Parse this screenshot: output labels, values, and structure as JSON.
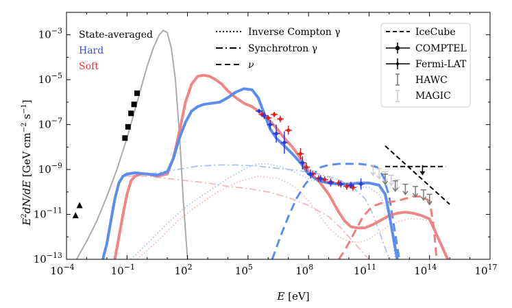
{
  "chart_data": {
    "type": "line",
    "xlabel": "E [eV]",
    "ylabel": "E²dN/dE [GeV cm⁻² s⁻¹]",
    "xlim_log10": [
      -4,
      17
    ],
    "ylim_log10": [
      -13,
      -2
    ],
    "x_ticks": [
      {
        "mant": "10",
        "exp": "−4",
        "v": -4
      },
      {
        "mant": "10",
        "exp": "−1",
        "v": -1
      },
      {
        "mant": "10",
        "exp": "2",
        "v": 2
      },
      {
        "mant": "10",
        "exp": "5",
        "v": 5
      },
      {
        "mant": "10",
        "exp": "8",
        "v": 8
      },
      {
        "mant": "10",
        "exp": "11",
        "v": 11
      },
      {
        "mant": "10",
        "exp": "14",
        "v": 14
      },
      {
        "mant": "10",
        "exp": "17",
        "v": 17
      }
    ],
    "y_ticks": [
      {
        "mant": "10",
        "exp": "−3",
        "v": -3
      },
      {
        "mant": "10",
        "exp": "−5",
        "v": -5
      },
      {
        "mant": "10",
        "exp": "−7",
        "v": -7
      },
      {
        "mant": "10",
        "exp": "−9",
        "v": -9
      },
      {
        "mant": "10",
        "exp": "−11",
        "v": -11
      },
      {
        "mant": "10",
        "exp": "−13",
        "v": -13
      }
    ],
    "state_legend": [
      {
        "label": "State-averaged",
        "color": "#222222"
      },
      {
        "label": "Hard",
        "color": "#3b4fe0"
      },
      {
        "label": "Soft",
        "color": "#e8323c"
      }
    ],
    "component_legend": [
      {
        "label": "Inverse Compton γ",
        "dash": "2,3"
      },
      {
        "label": "Synchrotron γ",
        "dash": "10,4,2,4"
      },
      {
        "label": "ν",
        "dash": "8,5"
      }
    ],
    "data_legend": [
      {
        "label": "IceCube",
        "kind": "dashed-line",
        "color": "#000000"
      },
      {
        "label": "COMPTEL",
        "kind": "errorbar",
        "color": "#000000"
      },
      {
        "label": "Fermi-LAT",
        "kind": "errorbar",
        "color": "#000000"
      },
      {
        "label": "HAWC",
        "kind": "upper",
        "color": "#777777"
      },
      {
        "label": "MAGIC",
        "kind": "upper",
        "color": "#cccccc"
      }
    ],
    "colors": {
      "gray": "#aaaaaa",
      "hard": "#5b8def",
      "soft": "#ee7f7f",
      "hard_light": "#a9c4ef",
      "soft_light": "#f3b9b9",
      "hard_points": "#2a3bd6",
      "soft_points": "#e01e1e"
    },
    "series": [
      {
        "name": "gray-thermal",
        "style": "solid",
        "color": "gray",
        "width": 2,
        "x": [
          -3.5,
          -3,
          -2.5,
          -2,
          -1.5,
          -1,
          -0.5,
          0,
          0.3,
          0.6,
          0.8,
          1,
          1.2,
          1.4,
          1.6,
          1.8,
          2
        ],
        "y": [
          -13,
          -12.2,
          -11.3,
          -10.2,
          -9,
          -7.6,
          -6,
          -4.4,
          -3.6,
          -3,
          -2.8,
          -2.9,
          -3.6,
          -5,
          -7.4,
          -10.5,
          -13
        ]
      },
      {
        "name": "hard-total",
        "style": "solid",
        "color": "hard",
        "width": 4,
        "x": [
          -2.2,
          -2,
          -1.8,
          -1.6,
          -1.4,
          -1.2,
          -1,
          -0.6,
          0,
          0.5,
          1,
          1.3,
          1.6,
          1.9,
          2.2,
          2.5,
          2.8,
          3.2,
          3.6,
          4,
          4.4,
          4.8,
          5.2,
          5.5,
          5.8,
          6.1,
          6.4,
          6.8,
          7.2,
          7.6,
          8,
          8.5,
          9,
          9.5,
          10,
          10.5,
          11,
          11.5,
          11.8,
          12,
          12.2,
          12.4
        ],
        "y": [
          -13,
          -12.3,
          -11.3,
          -10.3,
          -9.6,
          -9.3,
          -9.2,
          -9.15,
          -9.2,
          -9.25,
          -9.1,
          -8.5,
          -7.6,
          -6.9,
          -6.4,
          -6.2,
          -6.1,
          -6.05,
          -6.0,
          -5.8,
          -5.55,
          -5.4,
          -5.45,
          -5.8,
          -6.5,
          -7.2,
          -7.6,
          -7.95,
          -8.3,
          -8.7,
          -9.2,
          -9.5,
          -9.6,
          -9.65,
          -9.65,
          -9.6,
          -9.6,
          -9.7,
          -10.1,
          -11,
          -12,
          -13
        ]
      },
      {
        "name": "soft-total",
        "style": "solid",
        "color": "soft",
        "width": 4,
        "x": [
          -1.6,
          -1.4,
          -1.2,
          -1,
          -0.8,
          -0.6,
          -0.3,
          0,
          0.5,
          1,
          1.3,
          1.6,
          1.9,
          2.2,
          2.5,
          2.8,
          3.1,
          3.4,
          3.7,
          4,
          4.4,
          4.8,
          5.2,
          5.6,
          6,
          6.4,
          6.8,
          7.2,
          7.6,
          8,
          8.5,
          9,
          9.5,
          9.8,
          10.1,
          10.4,
          10.8,
          11.2,
          11.6,
          12,
          12.4,
          12.8,
          13.2,
          13.6,
          14,
          14.3,
          14.6,
          14.9
        ],
        "y": [
          -13,
          -12,
          -11,
          -10.1,
          -9.5,
          -9.3,
          -9.2,
          -9.2,
          -9.3,
          -9.2,
          -8.5,
          -7.3,
          -6.0,
          -5.2,
          -4.85,
          -4.8,
          -4.85,
          -5.0,
          -5.2,
          -5.5,
          -5.8,
          -6.05,
          -6.2,
          -6.45,
          -6.75,
          -7.15,
          -7.6,
          -8.0,
          -8.5,
          -9.1,
          -9.5,
          -10.1,
          -10.9,
          -11.3,
          -11.55,
          -11.6,
          -11.6,
          -11.45,
          -11.25,
          -11.05,
          -10.95,
          -10.9,
          -10.95,
          -11.05,
          -11.2,
          -11.8,
          -12.4,
          -13
        ]
      },
      {
        "name": "hard-nu",
        "style": "dashed",
        "color": "hard",
        "width": 3,
        "x": [
          6.2,
          6.6,
          7,
          7.4,
          7.8,
          8.2,
          8.6,
          9,
          9.5,
          10,
          10.5,
          11,
          11.4,
          11.7,
          12,
          12.2,
          12.5
        ],
        "y": [
          -13,
          -12,
          -11.1,
          -10.3,
          -9.7,
          -9.25,
          -8.9,
          -8.8,
          -8.75,
          -8.75,
          -8.75,
          -8.8,
          -8.9,
          -9.3,
          -10.2,
          -11.3,
          -13
        ]
      },
      {
        "name": "soft-nu",
        "style": "dashed",
        "color": "soft",
        "width": 3,
        "x": [
          9.5,
          9.8,
          10.1,
          10.4,
          10.7,
          11,
          11.3,
          11.6,
          12,
          12.4,
          12.8,
          13.2,
          13.6,
          14,
          14.2,
          14.35
        ],
        "y": [
          -13,
          -12.6,
          -12.1,
          -11.6,
          -11.1,
          -10.8,
          -10.6,
          -10.5,
          -10.45,
          -10.4,
          -10.3,
          -10.2,
          -10.2,
          -10.4,
          -11.5,
          -13
        ]
      },
      {
        "name": "hard-sync",
        "style": "dashdot",
        "color": "hard_light",
        "width": 1.8,
        "x": [
          -1.2,
          -0.5,
          0.5,
          1.5,
          2.5,
          3.5,
          4.5,
          5.5,
          6.5,
          7.5,
          8.5,
          9.5,
          10.2,
          10.8,
          11.2,
          11.6,
          12
        ],
        "y": [
          -9.3,
          -9.25,
          -9.15,
          -9.0,
          -8.85,
          -8.8,
          -8.8,
          -8.85,
          -8.95,
          -9.05,
          -9.2,
          -9.45,
          -9.8,
          -10.3,
          -11,
          -12,
          -13
        ]
      },
      {
        "name": "soft-sync",
        "style": "dashdot",
        "color": "soft_light",
        "width": 1.8,
        "x": [
          -1.0,
          0,
          1,
          2,
          3,
          4,
          5,
          6,
          7,
          8,
          9,
          9.6,
          10.2,
          10.6,
          11
        ],
        "y": [
          -9.3,
          -9.3,
          -9.4,
          -9.5,
          -9.6,
          -9.75,
          -9.85,
          -10.0,
          -10.25,
          -10.6,
          -11.1,
          -11.6,
          -12.2,
          -12.6,
          -13
        ]
      },
      {
        "name": "hard-ic",
        "style": "dotted",
        "color": "hard_light",
        "width": 1.8,
        "x": [
          -0.8,
          0,
          1,
          2,
          3,
          4,
          5,
          5.5,
          6,
          6.5,
          7,
          7.5,
          8,
          8.5,
          9,
          10,
          11,
          11.5,
          12,
          12.3
        ],
        "y": [
          -13,
          -12.3,
          -11.4,
          -10.6,
          -10.0,
          -9.4,
          -8.9,
          -8.75,
          -8.75,
          -8.85,
          -9.0,
          -9.2,
          -9.4,
          -9.55,
          -9.65,
          -9.75,
          -9.8,
          -10.1,
          -11,
          -13
        ]
      },
      {
        "name": "soft-ic",
        "style": "dotted",
        "color": "soft_light",
        "width": 1.8,
        "x": [
          -0.5,
          0.5,
          1.5,
          2.5,
          3.5,
          4.5,
          5.5,
          6.5,
          7,
          7.5,
          8,
          8.5,
          9,
          9.5,
          10,
          10.5,
          11,
          11.5,
          12,
          12.5,
          13,
          13.5,
          14,
          14.2
        ],
        "y": [
          -13,
          -12.2,
          -11.3,
          -10.6,
          -10.0,
          -9.55,
          -9.3,
          -9.4,
          -9.6,
          -9.9,
          -10.4,
          -11.0,
          -11.6,
          -12.0,
          -12.2,
          -12.25,
          -12.1,
          -11.8,
          -11.5,
          -11.3,
          -11.2,
          -11.2,
          -11.3,
          -11.6
        ]
      },
      {
        "name": "icecube-flat",
        "style": "icecube",
        "color": "black",
        "width": 2,
        "x": [
          11.8,
          14.8
        ],
        "y": [
          -8.87,
          -8.87
        ]
      },
      {
        "name": "icecube-slope",
        "style": "icecube",
        "color": "black",
        "width": 2,
        "x": [
          11.8,
          15.0
        ],
        "y": [
          -7.95,
          -10.55
        ]
      }
    ],
    "points": {
      "state_squares": {
        "x": [
          -1.1,
          -0.95,
          -0.8,
          -0.65,
          -0.5
        ],
        "y": [
          -7.6,
          -7.1,
          -6.5,
          -6.1,
          -5.6
        ]
      },
      "state_triangles": {
        "x": [
          -3.55,
          -3.35
        ],
        "y": [
          -11.05,
          -10.6
        ]
      },
      "hard": {
        "x": [
          5.55,
          5.8,
          6.1,
          6.4,
          6.8,
          7.7,
          8.1,
          8.6,
          9.1,
          9.6,
          10.1,
          10.6
        ],
        "y": [
          -6.4,
          -6.6,
          -7.0,
          -7.4,
          -7.8,
          -8.7,
          -9.2,
          -9.4,
          -9.6,
          -9.65,
          -9.7,
          -9.65
        ],
        "err": [
          0.1,
          0.15,
          0.2,
          0.4,
          0.5,
          0.3,
          0.2,
          0.15,
          0.15,
          0.15,
          0.15,
          0.25
        ]
      },
      "soft": {
        "x": [
          5.7,
          6,
          6.3,
          6.6,
          7,
          7.6,
          7.9,
          8.2,
          8.5,
          8.8,
          9.1,
          9.5,
          9.9,
          10.2
        ],
        "y": [
          -6.55,
          -6.7,
          -6.55,
          -6.75,
          -7.25,
          -8.3,
          -8.9,
          -9.2,
          -9.4,
          -9.45,
          -9.55,
          -9.6,
          -9.75,
          -9.8
        ],
        "err": [
          0.12,
          0.12,
          0.12,
          0.15,
          0.2,
          0.25,
          0.2,
          0.15,
          0.15,
          0.15,
          0.15,
          0.15,
          0.15,
          0.15
        ]
      },
      "hawc_upper": {
        "x": [
          11.8,
          12.3,
          12.8,
          13.3,
          13.7,
          14.0
        ],
        "y": [
          -9.45,
          -9.75,
          -9.9,
          -10.0,
          -10.15,
          -10.35
        ]
      },
      "magic_upper": {
        "x": [
          11.2,
          11.5,
          11.8,
          12.1,
          12.4
        ],
        "y": [
          -9.05,
          -9.2,
          -9.35,
          -9.5,
          -9.7
        ]
      },
      "fermi_black": {
        "x": [
          13.65
        ],
        "y": [
          -9.05
        ]
      }
    }
  }
}
